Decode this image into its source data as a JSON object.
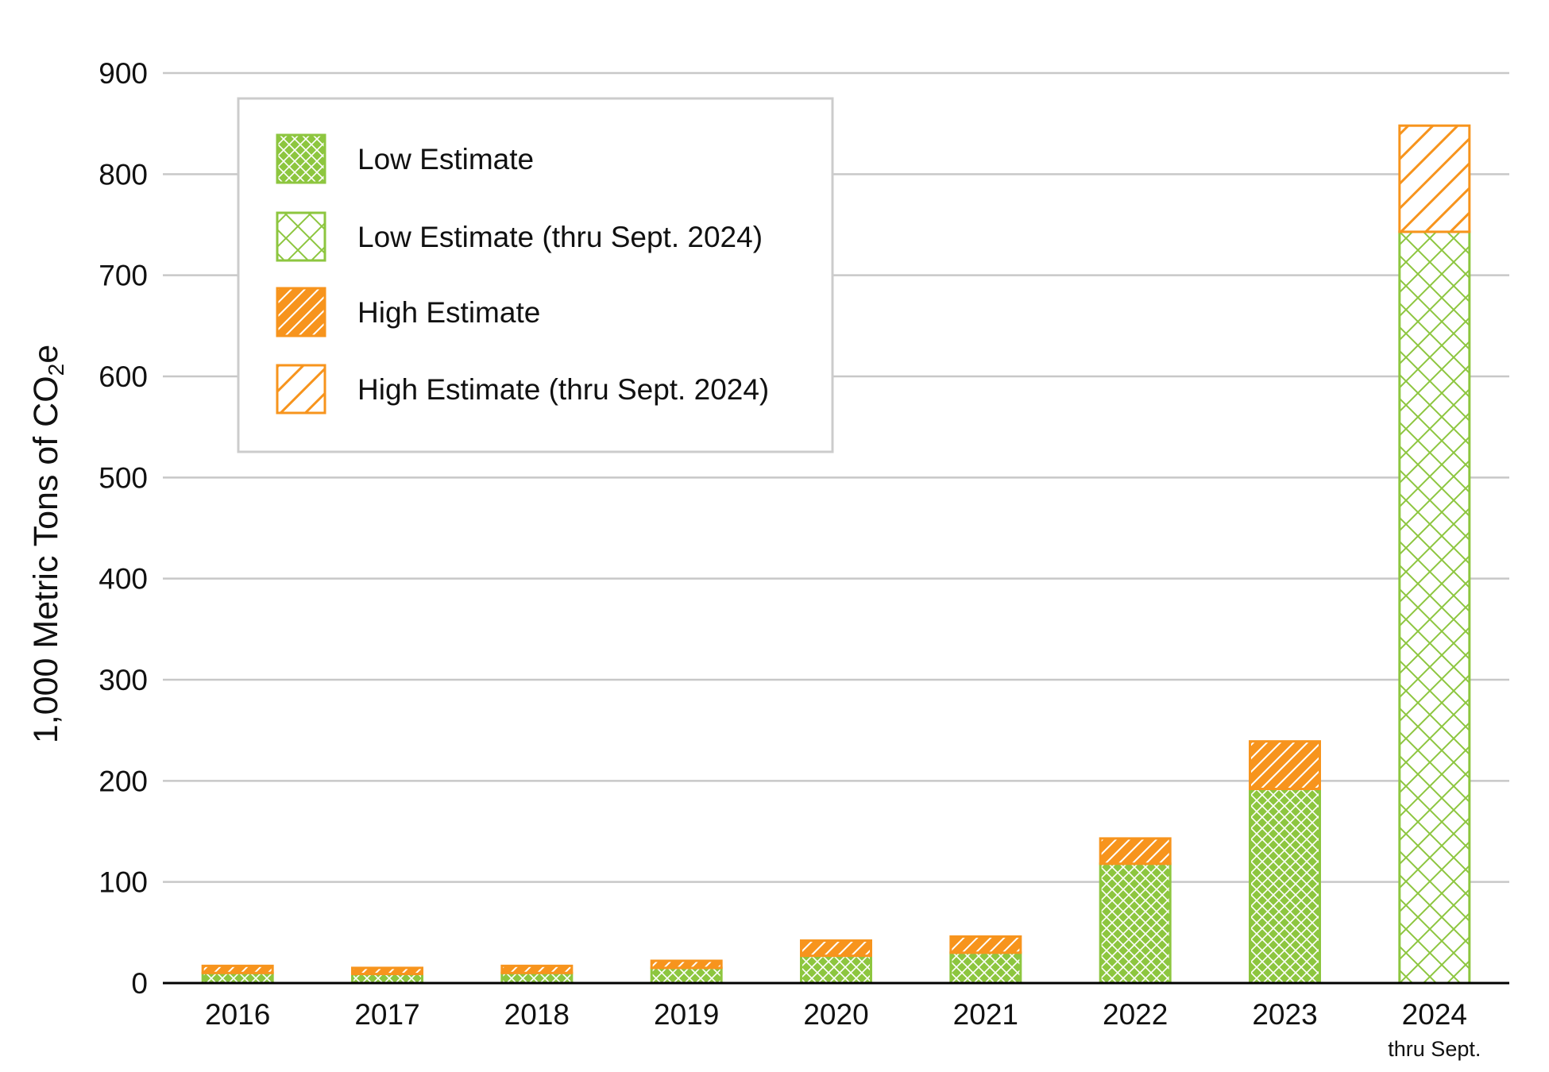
{
  "chart_data": {
    "type": "bar",
    "stacked": true,
    "categories": [
      "2016",
      "2017",
      "2018",
      "2019",
      "2020",
      "2021",
      "2022",
      "2023",
      "2024"
    ],
    "category_sublabels": [
      "",
      "",
      "",
      "",
      "",
      "",
      "",
      "",
      "thru Sept."
    ],
    "ylabel": "1,000 Metric Tons of CO2e",
    "ylabel_parts": {
      "pre": "1,000 Metric Tons of CO",
      "sub": "2",
      "post": "e"
    },
    "ylim": [
      0,
      900
    ],
    "yticks": [
      0,
      100,
      200,
      300,
      400,
      500,
      600,
      700,
      800,
      900
    ],
    "grid": true,
    "legend_position": "top-left",
    "series": [
      {
        "name": "Low Estimate",
        "pattern": "crosshatch-solid",
        "color": "#8DC63F",
        "values": [
          10,
          9,
          10,
          15,
          27,
          30,
          118,
          192,
          null
        ]
      },
      {
        "name": "Low Estimate (thru Sept. 2024)",
        "pattern": "crosshatch-outline",
        "color": "#8DC63F",
        "values": [
          null,
          null,
          null,
          null,
          null,
          null,
          null,
          null,
          743
        ]
      },
      {
        "name": "High Estimate",
        "pattern": "diagonal-solid",
        "color": "#F7941D",
        "values": [
          7,
          6,
          7,
          7,
          15,
          16,
          25,
          47,
          null
        ]
      },
      {
        "name": "High Estimate (thru Sept. 2024)",
        "pattern": "diagonal-outline",
        "color": "#F7941D",
        "values": [
          null,
          null,
          null,
          null,
          null,
          null,
          null,
          null,
          105
        ]
      }
    ]
  }
}
